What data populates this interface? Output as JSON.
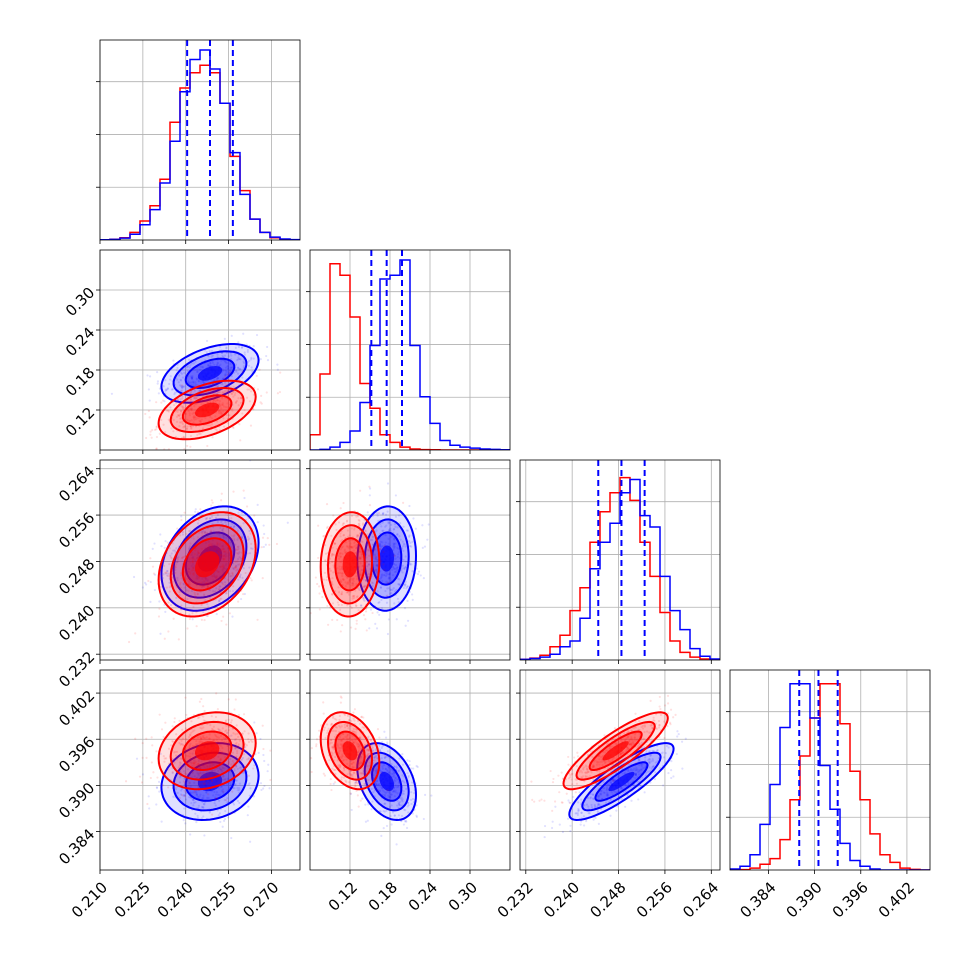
{
  "chart_data": {
    "type": "corner",
    "grid": true,
    "series": [
      {
        "name": "",
        "color": "#0000ff",
        "means": [
          0.2485,
          0.175,
          0.2485,
          0.3905
        ],
        "sds": [
          0.0085,
          0.022,
          0.0045,
          0.0025
        ],
        "correlations": [
          [
            0,
            1,
            0.45
          ],
          [
            0,
            2,
            0.3
          ],
          [
            0,
            3,
            0.15
          ],
          [
            1,
            2,
            0.05
          ],
          [
            1,
            3,
            -0.35
          ],
          [
            2,
            3,
            0.85
          ]
        ]
      },
      {
        "name": "",
        "color": "#ff0000",
        "means": [
          0.2475,
          0.12,
          0.2475,
          0.3945
        ],
        "sds": [
          0.0085,
          0.022,
          0.0045,
          0.0025
        ],
        "correlations": [
          [
            0,
            1,
            0.45
          ],
          [
            0,
            2,
            0.3
          ],
          [
            0,
            3,
            0.2
          ],
          [
            1,
            2,
            0.05
          ],
          [
            1,
            3,
            -0.3
          ],
          [
            2,
            3,
            0.85
          ]
        ]
      }
    ],
    "quantile_lines": {
      "color": "#0000ff",
      "style": "dashed",
      "values": [
        [
          0.2405,
          0.2485,
          0.2565
        ],
        [
          0.152,
          0.175,
          0.198
        ],
        [
          0.2445,
          0.2485,
          0.2525
        ],
        [
          0.388,
          0.3905,
          0.393
        ]
      ]
    },
    "histograms": [
      {
        "parameter": 0,
        "bins": [
          0.21,
          0.28
        ],
        "blue": [
          0.1,
          0.3,
          1,
          3,
          8,
          16,
          30,
          52,
          78,
          95,
          100,
          90,
          72,
          46,
          24,
          11,
          4,
          1.5,
          0.5,
          0.2
        ],
        "red": [
          0.1,
          0.4,
          1.2,
          4,
          10,
          18,
          32,
          62,
          80,
          88,
          92,
          88,
          72,
          44,
          26,
          11,
          4,
          1.2,
          0.4,
          0.1
        ]
      },
      {
        "parameter": 1,
        "bins": [
          0.06,
          0.36
        ],
        "blue": [
          0,
          0.3,
          1.5,
          4,
          10,
          25,
          55,
          90,
          92,
          100,
          55,
          28,
          14,
          5,
          2.5,
          1.5,
          1,
          0.5,
          0.3,
          0.1
        ],
        "red": [
          8,
          40,
          98,
          92,
          70,
          35,
          22,
          8,
          4,
          1.5,
          0.5,
          0.2,
          0.1,
          0,
          0,
          0,
          0,
          0,
          0,
          0
        ]
      },
      {
        "parameter": 2,
        "bins": [
          0.231,
          0.2655
        ],
        "blue": [
          0.3,
          0.8,
          1.5,
          3,
          7,
          10,
          22,
          48,
          62,
          72,
          88,
          95,
          76,
          70,
          44,
          26,
          16,
          6,
          2,
          0.5
        ],
        "red": [
          0.3,
          1,
          2.5,
          7,
          13,
          26,
          38,
          62,
          78,
          88,
          96,
          84,
          62,
          44,
          25,
          10,
          4,
          1.5,
          0.5,
          0.2
        ]
      },
      {
        "parameter": 3,
        "bins": [
          0.379,
          0.405
        ],
        "blue": [
          0.5,
          2,
          8,
          24,
          45,
          75,
          98,
          98,
          80,
          55,
          32,
          14,
          5,
          2,
          0.5,
          0,
          0,
          0,
          0,
          0
        ],
        "red": [
          0,
          0.2,
          1,
          3,
          6,
          16,
          37,
          60,
          80,
          98,
          98,
          77,
          52,
          37,
          19,
          8,
          4,
          1,
          0.3,
          0
        ]
      }
    ],
    "axes": [
      {
        "parameter": 0,
        "range": [
          0.21,
          0.28
        ],
        "xticks": [
          0.21,
          0.225,
          0.24,
          0.255,
          0.27
        ],
        "xtick_labels": [
          "0.210",
          "0.225",
          "0.240",
          "0.255",
          "0.270"
        ],
        "yticks": [],
        "ytick_labels": []
      },
      {
        "parameter": 1,
        "range": [
          0.06,
          0.36
        ],
        "xticks": [
          0.12,
          0.18,
          0.24,
          0.3
        ],
        "xtick_labels": [
          "0.12",
          "0.18",
          "0.24",
          "0.30"
        ],
        "yticks": [
          0.12,
          0.18,
          0.24,
          0.3
        ],
        "ytick_labels": [
          "0.12",
          "0.18",
          "0.24",
          "0.30"
        ]
      },
      {
        "parameter": 2,
        "range": [
          0.231,
          0.2655
        ],
        "xticks": [
          0.232,
          0.24,
          0.248,
          0.256,
          0.264
        ],
        "xtick_labels": [
          "0.232",
          "0.240",
          "0.248",
          "0.256",
          "0.264"
        ],
        "yticks": [
          0.232,
          0.24,
          0.248,
          0.256,
          0.264
        ],
        "ytick_labels": [
          "0.232",
          "0.240",
          "0.248",
          "0.256",
          "0.264"
        ]
      },
      {
        "parameter": 3,
        "range": [
          0.379,
          0.405
        ],
        "xticks": [
          0.384,
          0.39,
          0.396,
          0.402
        ],
        "xtick_labels": [
          "0.384",
          "0.390",
          "0.396",
          "0.402"
        ],
        "yticks": [
          0.384,
          0.39,
          0.396,
          0.402
        ],
        "ytick_labels": [
          "0.384",
          "0.390",
          "0.396",
          "0.402"
        ]
      }
    ]
  }
}
